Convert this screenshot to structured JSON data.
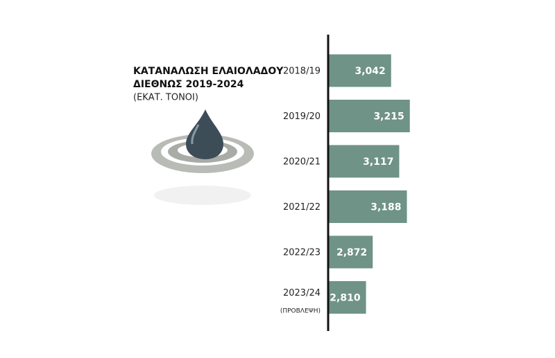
{
  "chart_data": {
    "type": "barh",
    "title": [
      "ΚΑΤΑΝΑΛΩΣΗ ΕΛΑΙΟΛΑΔΟΥ",
      "ΔΙΕΘΝΩΣ 2019-2024"
    ],
    "subtitle": "(ΕΚΑΤ. ΤΟΝΟΙ)",
    "categories": [
      "2018/19",
      "2019/20",
      "2020/21",
      "2021/22",
      "2022/23",
      "2023/24"
    ],
    "annotation": "(ΠΡΟΒΛΕΨΗ)",
    "values": [
      3042,
      3215,
      3117,
      3188,
      2872,
      2810
    ],
    "value_labels": [
      "3,042",
      "3,215",
      "3,117",
      "3,188",
      "2,872",
      "2,810"
    ],
    "color": "#6f9386",
    "xlim": [
      2460,
      3300
    ]
  }
}
